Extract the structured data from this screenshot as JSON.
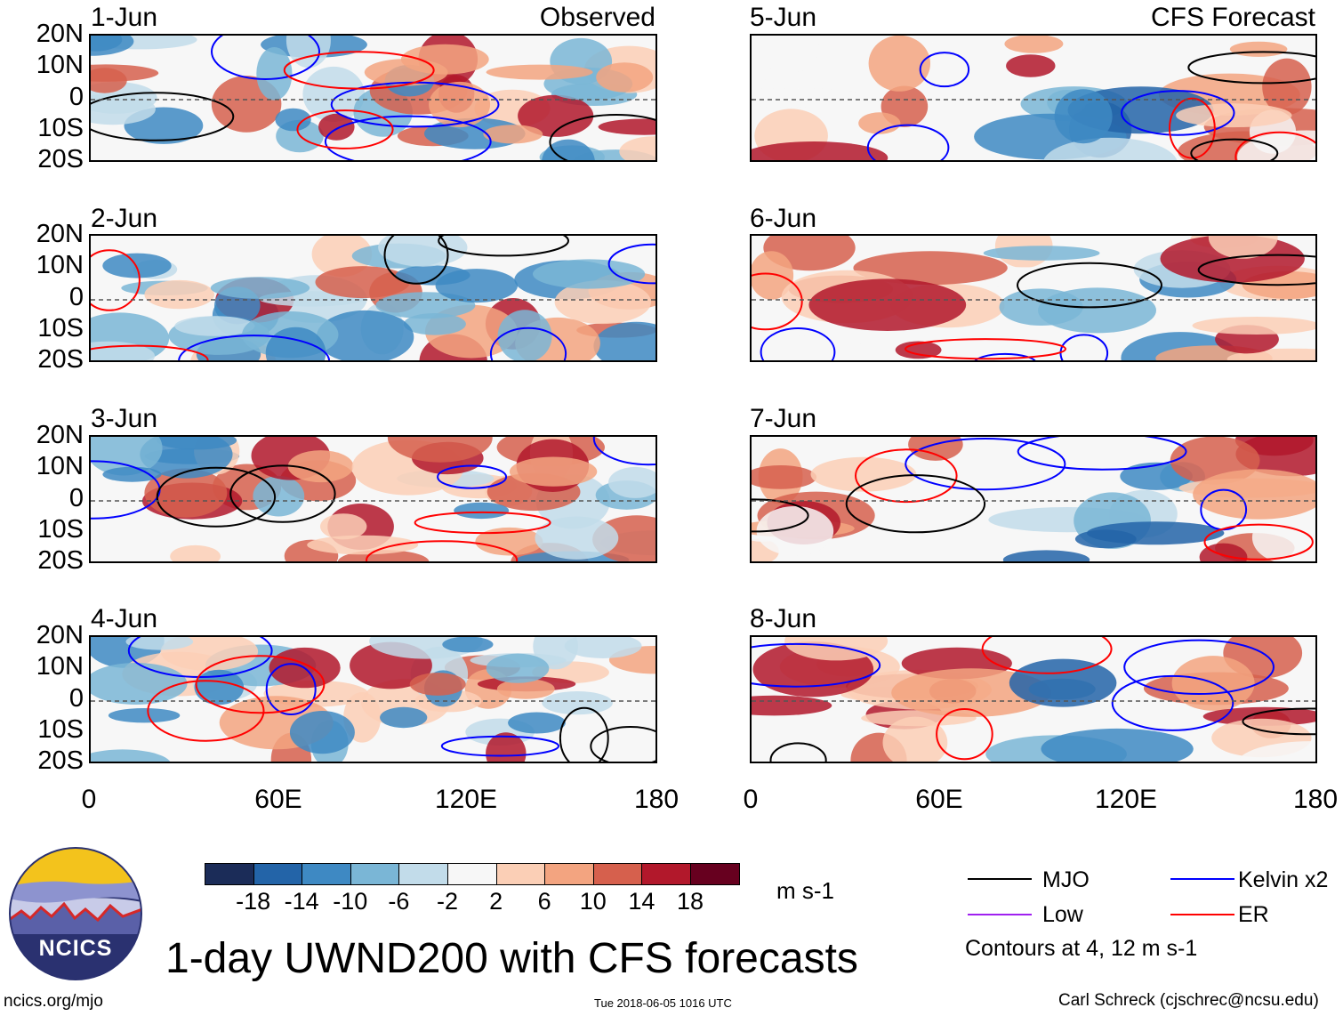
{
  "title": "1-day UWND200 with CFS forecasts",
  "observed_label": "Observed",
  "forecast_label": "CFS Forecast",
  "panels": [
    {
      "date": "1-Jun",
      "tag": "Observed"
    },
    {
      "date": "2-Jun"
    },
    {
      "date": "3-Jun"
    },
    {
      "date": "4-Jun"
    },
    {
      "date": "5-Jun",
      "tag": "CFS Forecast"
    },
    {
      "date": "6-Jun"
    },
    {
      "date": "7-Jun"
    },
    {
      "date": "8-Jun"
    }
  ],
  "lat_labels": [
    "20N",
    "10N",
    "0",
    "10S",
    "20S"
  ],
  "lon_labels": [
    "0",
    "60E",
    "120E",
    "180"
  ],
  "colorbar": {
    "unit": "m s-1",
    "labels": [
      "-18",
      "-14",
      "-10",
      "-6",
      "-2",
      "2",
      "6",
      "10",
      "14",
      "18"
    ],
    "colors": [
      "#1b2c58",
      "#2364a8",
      "#3e89c3",
      "#7ab6d6",
      "#c2dcea",
      "#f7f7f7",
      "#fbcfb6",
      "#f3a480",
      "#d6604d",
      "#b2182b",
      "#67001f"
    ]
  },
  "legend": {
    "items": [
      {
        "label": "MJO",
        "color": "#000000"
      },
      {
        "label": "Kelvin x2",
        "color": "#0000ff"
      },
      {
        "label": "Low",
        "color": "#a020f0"
      },
      {
        "label": "ER",
        "color": "#ff0000"
      }
    ],
    "note": "Contours at 4, 12 m s-1"
  },
  "footer": {
    "url": "ncics.org/mjo",
    "timestamp": "Tue 2018-06-05 1016 UTC",
    "author": "Carl Schreck (cjschrec@ncsu.edu)",
    "logo_text": "NCICS"
  }
}
